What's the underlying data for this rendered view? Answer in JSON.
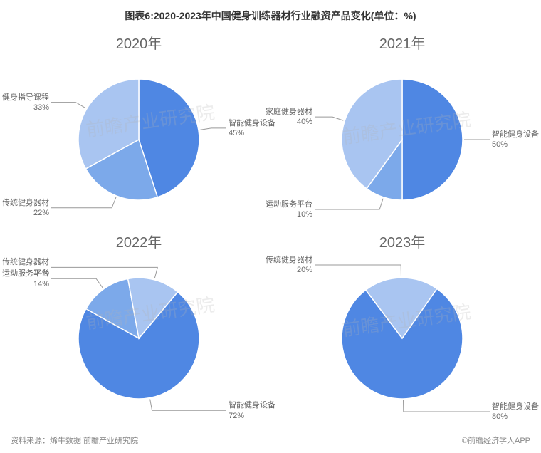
{
  "title": "图表6:2020-2023年中国健身训练器材行业融资产品变化(单位：%)",
  "footer_left": "资料来源：烯牛数据 前瞻产业研究院",
  "footer_right": "©前瞻经济学人APP",
  "watermark_text": "前瞻产业研究院",
  "colors": {
    "c1": "#4f87e3",
    "c2": "#7ca9ea",
    "c3": "#a9c5f1",
    "c4": "#c9daf6",
    "stroke": "#ffffff",
    "leader": "#999999",
    "text": "#666666"
  },
  "pie_radius": 85,
  "charts": [
    {
      "year": "2020年",
      "start_angle": -90,
      "slices": [
        {
          "name": "智能健身设备",
          "pct": 45,
          "color": "c1",
          "label_side": "right"
        },
        {
          "name": "传统健身器材",
          "pct": 22,
          "color": "c2",
          "label_side": "left"
        },
        {
          "name": "健身指导课程",
          "pct": 33,
          "color": "c3",
          "label_side": "left"
        }
      ]
    },
    {
      "year": "2021年",
      "start_angle": -90,
      "slices": [
        {
          "name": "智能健身设备",
          "pct": 50,
          "color": "c1",
          "label_side": "right"
        },
        {
          "name": "运动服务平台",
          "pct": 10,
          "color": "c2",
          "label_side": "left"
        },
        {
          "name": "家庭健身器材",
          "pct": 40,
          "color": "c3",
          "label_side": "left"
        }
      ]
    },
    {
      "year": "2022年",
      "start_angle": -50,
      "slices": [
        {
          "name": "智能健身设备",
          "pct": 72,
          "color": "c1",
          "label_side": "right"
        },
        {
          "name": "运动服务平台",
          "pct": 14,
          "color": "c2",
          "label_side": "left"
        },
        {
          "name": "传统健身器材",
          "pct": 14,
          "color": "c3",
          "label_side": "left"
        }
      ]
    },
    {
      "year": "2023年",
      "start_angle": -55,
      "slices": [
        {
          "name": "智能健身设备",
          "pct": 80,
          "color": "c1",
          "label_side": "right"
        },
        {
          "name": "传统健身器材",
          "pct": 20,
          "color": "c3",
          "label_side": "left"
        }
      ]
    }
  ]
}
